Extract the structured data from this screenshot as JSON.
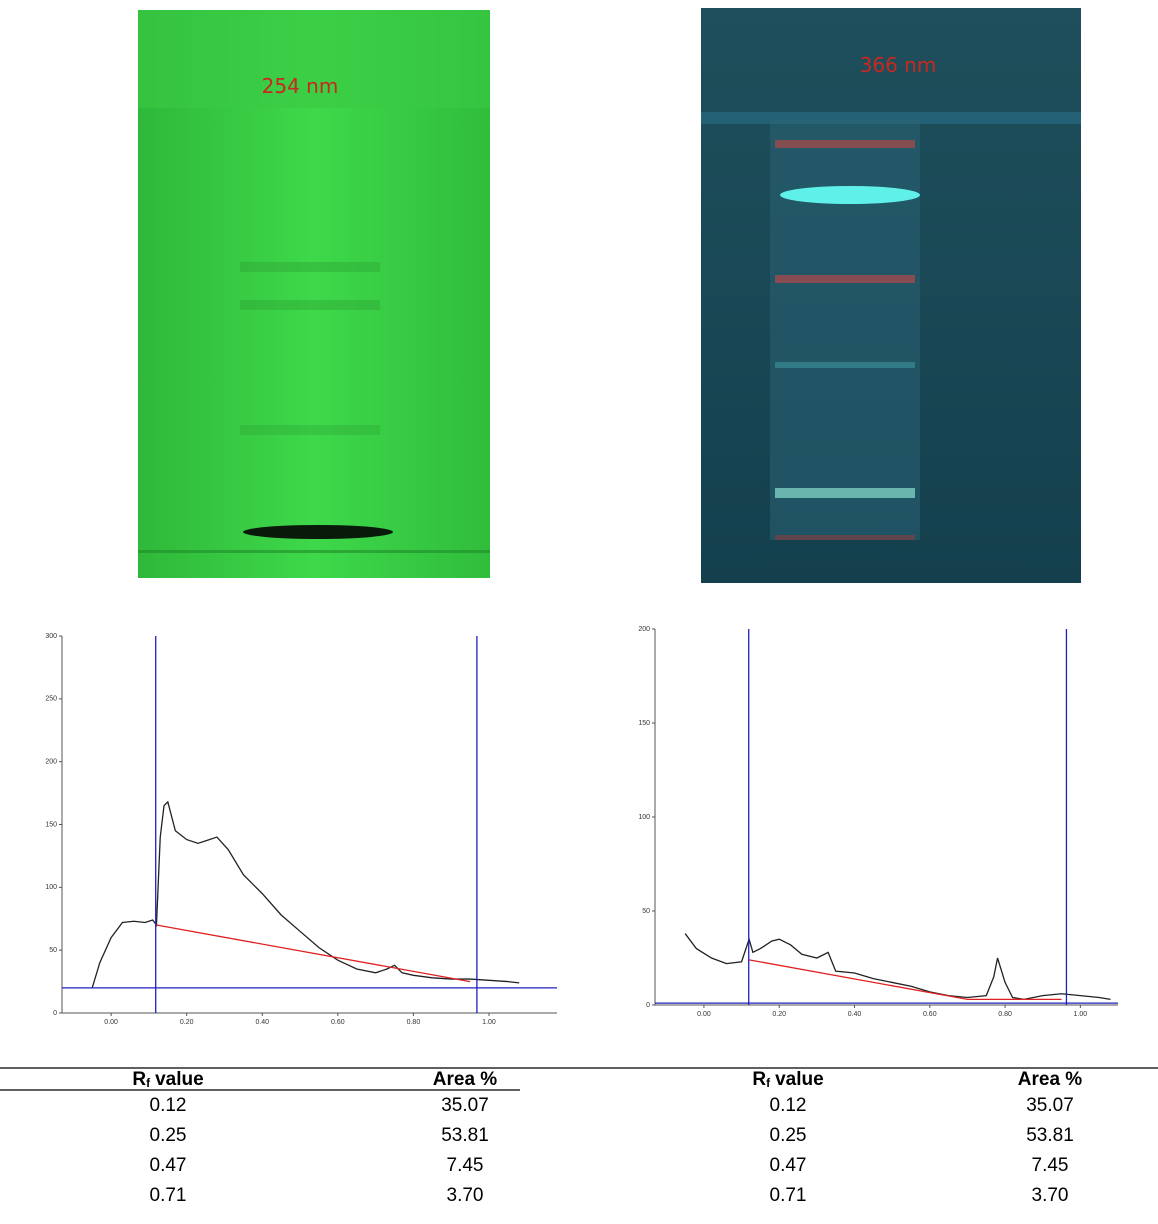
{
  "plates": [
    {
      "label": "254 nm"
    },
    {
      "label": "366 nm"
    }
  ],
  "chart_data": [
    {
      "type": "line",
      "xlim": [
        -0.13,
        1.18
      ],
      "ylim": [
        0,
        300
      ],
      "xticks": [
        {
          "value": 0,
          "label": "0.00"
        },
        {
          "value": 0.2,
          "label": "0.20"
        },
        {
          "value": 0.4,
          "label": "0.40"
        },
        {
          "value": 0.6,
          "label": "0.60"
        },
        {
          "value": 0.8,
          "label": "0.80"
        },
        {
          "value": 1,
          "label": "1.00"
        }
      ],
      "yticks": [
        0,
        50,
        100,
        150,
        200,
        250,
        300
      ],
      "vlines": [
        0.118,
        0.968
      ],
      "vline_color": "#2020c0",
      "hline": 20,
      "hline_color": "#2020c0",
      "series": [
        {
          "color": "#222222",
          "x": [
            -0.05,
            -0.03,
            0.0,
            0.03,
            0.06,
            0.09,
            0.11,
            0.12,
            0.13,
            0.14,
            0.15,
            0.17,
            0.2,
            0.23,
            0.26,
            0.28,
            0.31,
            0.35,
            0.4,
            0.45,
            0.5,
            0.55,
            0.6,
            0.65,
            0.7,
            0.73,
            0.75,
            0.77,
            0.8,
            0.85,
            0.9,
            0.95,
            1.0,
            1.05,
            1.08
          ],
          "values": [
            20,
            40,
            60,
            72,
            73,
            72,
            74,
            70,
            140,
            165,
            168,
            145,
            138,
            135,
            138,
            140,
            130,
            110,
            95,
            78,
            65,
            52,
            42,
            35,
            32,
            35,
            38,
            32,
            30,
            28,
            27,
            27,
            26,
            25,
            24
          ]
        },
        {
          "color": "#e02020",
          "x": [
            0.12,
            0.95
          ],
          "values": [
            70,
            25
          ]
        }
      ]
    },
    {
      "type": "line",
      "xlim": [
        -0.13,
        1.1
      ],
      "ylim": [
        0,
        200
      ],
      "xticks": [
        {
          "value": 0,
          "label": "0.00"
        },
        {
          "value": 0.2,
          "label": "0.20"
        },
        {
          "value": 0.4,
          "label": "0.40"
        },
        {
          "value": 0.6,
          "label": "0.60"
        },
        {
          "value": 0.8,
          "label": "0.80"
        },
        {
          "value": 1,
          "label": "1.00"
        }
      ],
      "yticks": [
        0,
        50,
        100,
        150,
        200
      ],
      "vlines": [
        0.119,
        0.963
      ],
      "vline_color": "#2020c0",
      "hline": 1,
      "hline_color": "#2020c0",
      "series": [
        {
          "color": "#222222",
          "x": [
            -0.05,
            -0.02,
            0.02,
            0.06,
            0.1,
            0.12,
            0.13,
            0.15,
            0.18,
            0.2,
            0.23,
            0.26,
            0.3,
            0.33,
            0.35,
            0.4,
            0.45,
            0.5,
            0.55,
            0.6,
            0.65,
            0.7,
            0.75,
            0.77,
            0.78,
            0.8,
            0.82,
            0.85,
            0.9,
            0.95,
            1.0,
            1.05,
            1.08
          ],
          "values": [
            38,
            30,
            25,
            22,
            23,
            35,
            28,
            30,
            34,
            35,
            32,
            27,
            25,
            28,
            18,
            17,
            14,
            12,
            10,
            7,
            5,
            4,
            5,
            15,
            25,
            12,
            4,
            3,
            5,
            6,
            5,
            4,
            3
          ]
        },
        {
          "color": "#e02020",
          "x": [
            0.12,
            0.7,
            0.95
          ],
          "values": [
            24,
            3,
            3
          ]
        }
      ]
    }
  ],
  "table": {
    "header": [
      {
        "symbol": "R",
        "subscript": "f",
        "text": "value"
      },
      "Area %",
      {
        "symbol": "R",
        "subscript": "f",
        "text": "value"
      },
      "Area %"
    ],
    "rows": [
      [
        "0.12",
        "35.07",
        "0.12",
        "35.07"
      ],
      [
        "0.25",
        "53.81",
        "0.25",
        "53.81"
      ],
      [
        "0.47",
        "7.45",
        "0.47",
        "7.45"
      ],
      [
        "0.71",
        "3.70",
        "0.71",
        "3.70"
      ]
    ]
  }
}
